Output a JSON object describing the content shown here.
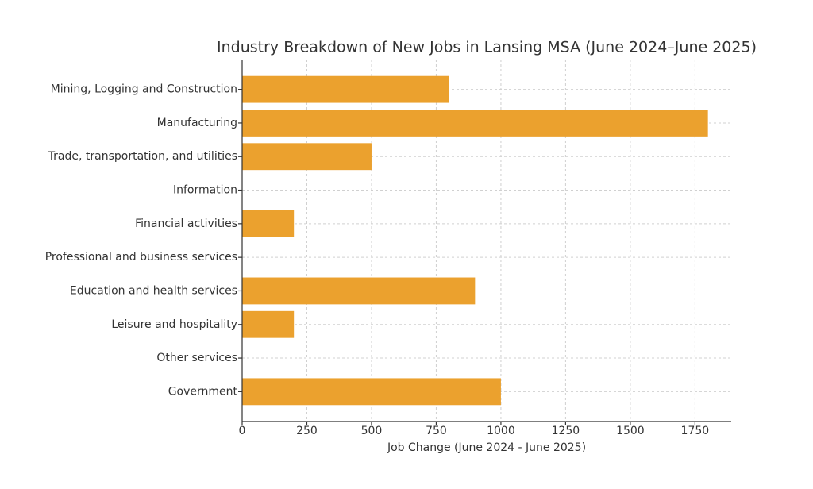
{
  "chart_data": {
    "type": "barh",
    "title": "Industry Breakdown of New Jobs in Lansing MSA (June 2024–June 2025)",
    "x_label": "Job Change (June 2024 - June 2025)",
    "categories": [
      "Mining, Logging and Construction",
      "Manufacturing",
      "Trade, transportation, and utilities",
      "Information",
      "Financial activities",
      "Professional and business services",
      "Education and health services",
      "Leisure and hospitality",
      "Other services",
      "Government"
    ],
    "values": [
      800,
      1800,
      500,
      0,
      200,
      0,
      900,
      200,
      0,
      1000
    ],
    "color": "#eba12e",
    "xlim": [
      0,
      1890
    ],
    "xticks": [
      0,
      250,
      500,
      750,
      1000,
      1250,
      1500,
      1750
    ],
    "grid": true
  }
}
